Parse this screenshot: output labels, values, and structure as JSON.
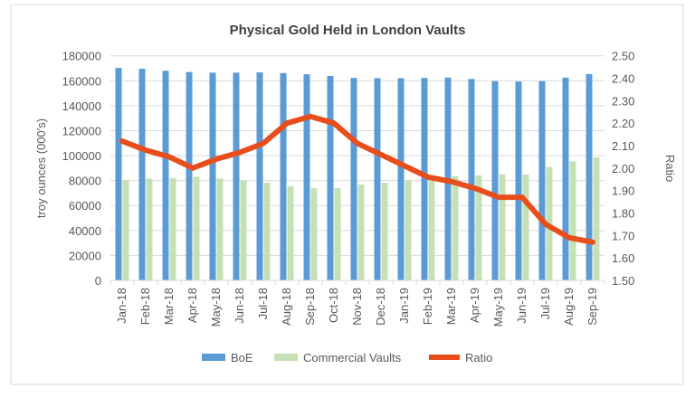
{
  "chart_data": {
    "type": "bar+line",
    "title": "Physical Gold Held in London Vaults",
    "ylabel": "troy ounces (000's)",
    "y2label": "Ratio",
    "ylim": [
      0,
      180000
    ],
    "y2lim": [
      1.5,
      2.5
    ],
    "yticks": [
      "0",
      "20000",
      "40000",
      "60000",
      "80000",
      "100000",
      "120000",
      "140000",
      "160000",
      "180000"
    ],
    "y2ticks": [
      "1.50",
      "1.60",
      "1.70",
      "1.80",
      "1.90",
      "2.00",
      "2.10",
      "2.20",
      "2.30",
      "2.40",
      "2.50"
    ],
    "grid": true,
    "legend_position": "bottom",
    "categories": [
      "Jan-18",
      "Feb-18",
      "Mar-18",
      "Apr-18",
      "May-18",
      "Jun-18",
      "Jul-18",
      "Aug-18",
      "Sep-18",
      "Oct-18",
      "Nov-18",
      "Dec-18",
      "Jan-19",
      "Feb-19",
      "Mar-19",
      "Apr-19",
      "May-19",
      "Jun-19",
      "Jul-19",
      "Aug-19",
      "Sep-19"
    ],
    "series": [
      {
        "name": "BoE",
        "type": "bar",
        "axis": "left",
        "color": "#5b9bd5",
        "values": [
          170300,
          169600,
          168000,
          167000,
          166500,
          166500,
          166700,
          166200,
          165200,
          163800,
          162300,
          162100,
          162100,
          162300,
          162500,
          161400,
          159700,
          159400,
          159700,
          162500,
          165400
        ]
      },
      {
        "name": "Commercial Vaults",
        "type": "bar",
        "axis": "left",
        "color": "#c5e0b4",
        "values": [
          80200,
          81700,
          81900,
          83100,
          81700,
          80200,
          78300,
          75600,
          73900,
          74100,
          76800,
          78300,
          80400,
          80000,
          83600,
          84100,
          85000,
          84800,
          90800,
          95400,
          98600
        ]
      },
      {
        "name": "Ratio",
        "type": "line",
        "axis": "right",
        "color": "#e84e1b",
        "values": [
          2.12,
          2.08,
          2.05,
          2.0,
          2.04,
          2.07,
          2.11,
          2.2,
          2.23,
          2.2,
          2.11,
          2.06,
          2.01,
          1.96,
          1.94,
          1.91,
          1.87,
          1.87,
          1.75,
          1.69,
          1.67
        ]
      }
    ]
  }
}
